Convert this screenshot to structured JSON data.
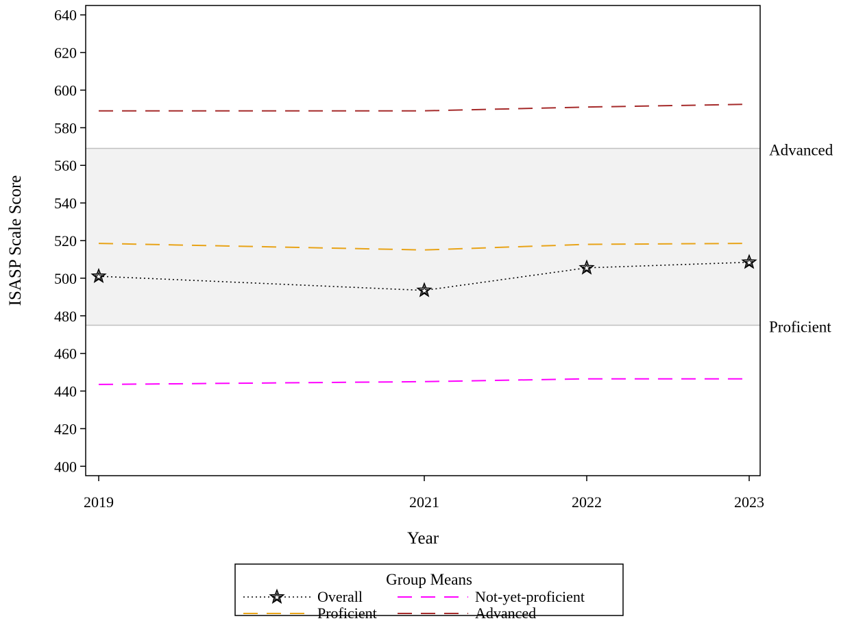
{
  "chart_data": {
    "type": "line",
    "xlabel": "Year",
    "ylabel": "ISASP Scale Score",
    "x": [
      2019,
      2021,
      2022,
      2023
    ],
    "x_tick_labels": [
      "2019",
      "2021",
      "2022",
      "2023"
    ],
    "ylim": [
      395,
      645
    ],
    "y_ticks": [
      400,
      420,
      440,
      460,
      480,
      500,
      520,
      540,
      560,
      580,
      600,
      620,
      640
    ],
    "grid": false,
    "reference_band": {
      "from": 475,
      "to": 569,
      "color": "#f2f2f2",
      "line_color": "#bfbfbf"
    },
    "reference_lines": [
      {
        "label": "Advanced",
        "y": 569
      },
      {
        "label": "Proficient",
        "y": 475
      }
    ],
    "series": [
      {
        "name": "Overall",
        "values": [
          501,
          493.5,
          505.5,
          508.5
        ],
        "color": "#000000",
        "dash": "dotted",
        "marker": "star"
      },
      {
        "name": "Not-yet-proficient",
        "values": [
          443.5,
          445,
          446.5,
          446.5
        ],
        "color": "#ff00ff",
        "dash": "dashed",
        "marker": "none"
      },
      {
        "name": "Proficient",
        "values": [
          518.5,
          515,
          518,
          518.5
        ],
        "color": "#e8a317",
        "dash": "dashed",
        "marker": "none"
      },
      {
        "name": "Advanced",
        "values": [
          589,
          589,
          591,
          592.5
        ],
        "color": "#a52a2a",
        "dash": "dashed",
        "marker": "none"
      }
    ],
    "legend": {
      "title": "Group Means",
      "position": "bottom-center",
      "entries": [
        "Overall",
        "Not-yet-proficient",
        "Proficient",
        "Advanced"
      ]
    }
  }
}
